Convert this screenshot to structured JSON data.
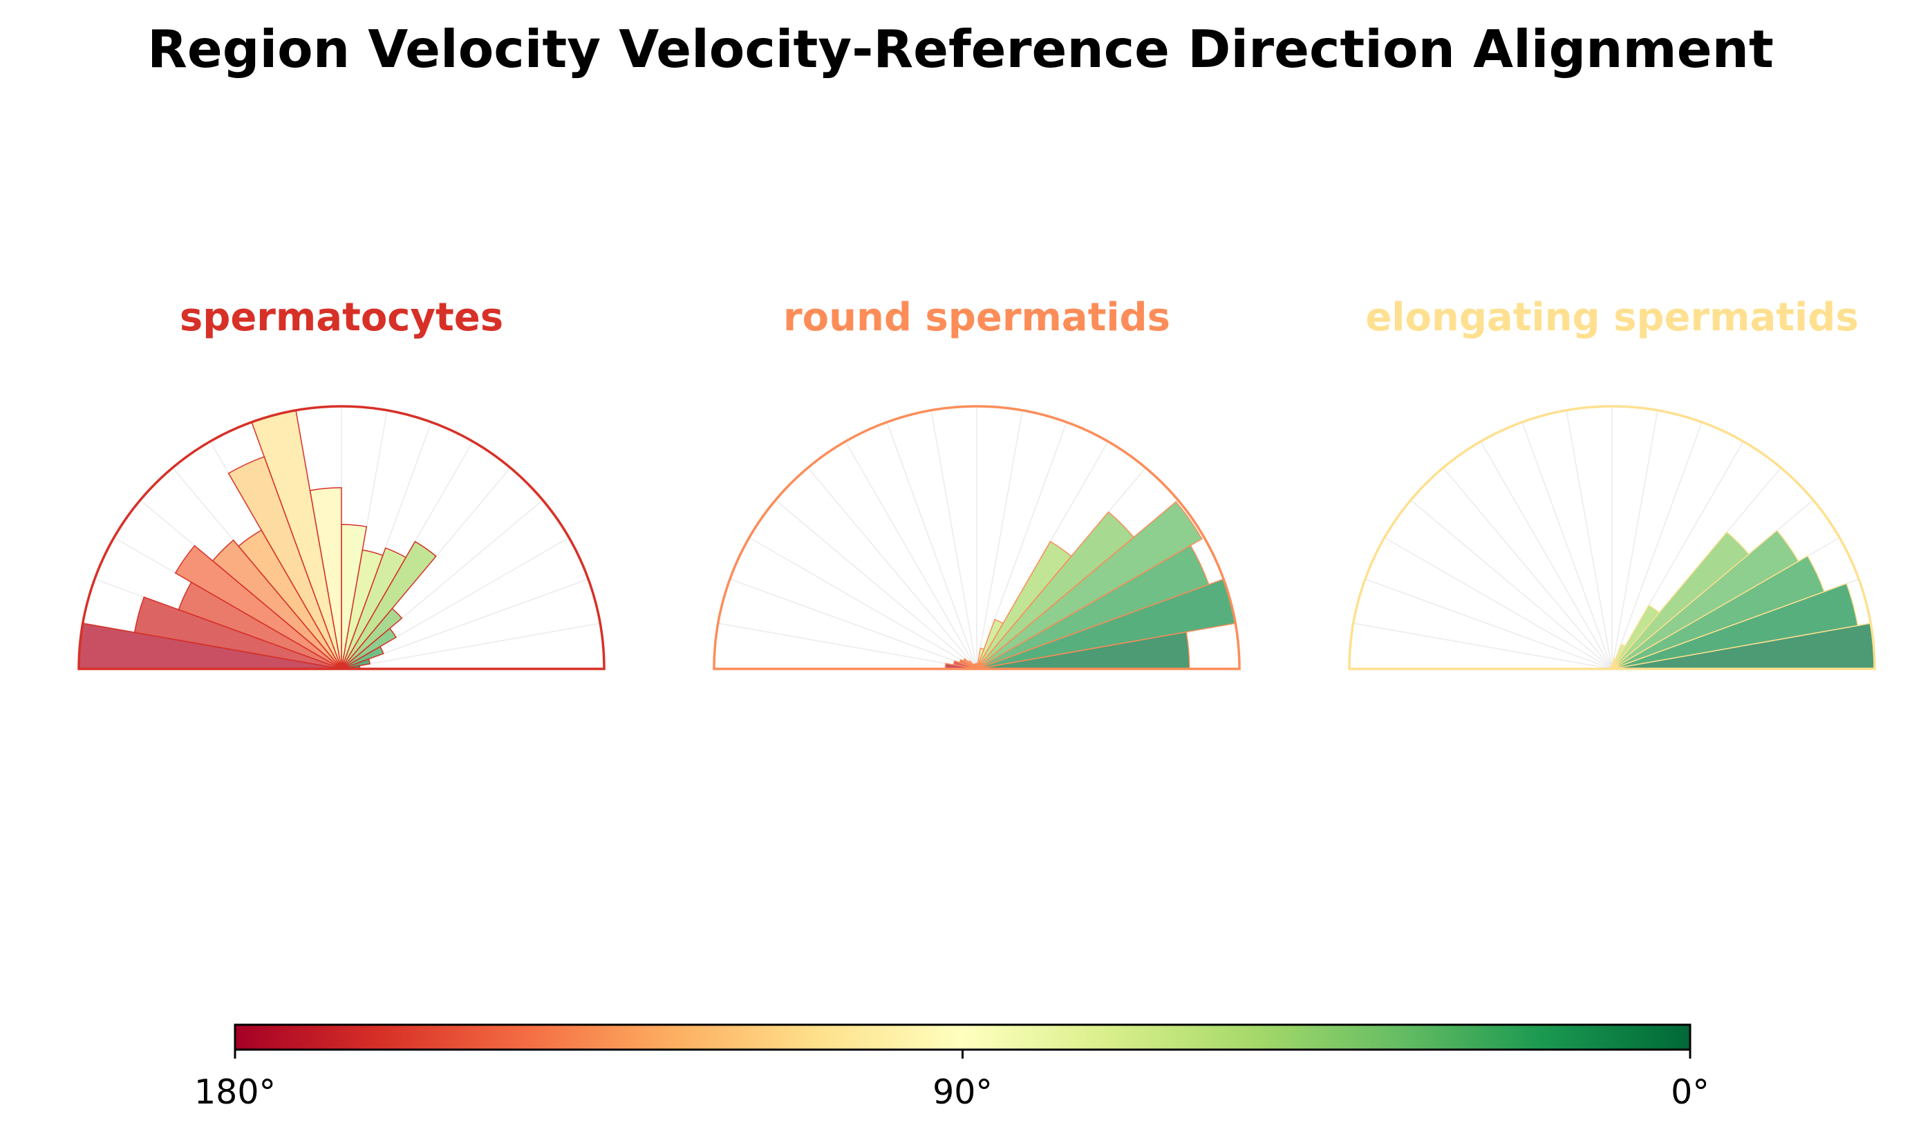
{
  "chart_data": {
    "type": "polar-histogram",
    "title": "Region Velocity Velocity-Reference Direction Alignment",
    "theta_range_deg": [
      0,
      180
    ],
    "bin_width_deg": 10,
    "bin_centers_deg": [
      5,
      15,
      25,
      35,
      45,
      55,
      65,
      75,
      85,
      95,
      105,
      115,
      125,
      135,
      145,
      155,
      165,
      175
    ],
    "panels": [
      {
        "name": "spermatocytes",
        "color": "#d73027",
        "values": [
          0.07,
          0.11,
          0.17,
          0.24,
          0.3,
          0.56,
          0.49,
          0.46,
          0.55,
          0.69,
          1.0,
          0.86,
          0.61,
          0.64,
          0.73,
          0.66,
          0.8,
          1.0
        ]
      },
      {
        "name": "round spermatids",
        "color": "#fc8d59",
        "values": [
          0.81,
          1.0,
          0.94,
          0.99,
          0.78,
          0.56,
          0.2,
          0.08,
          0.02,
          0.02,
          0.01,
          0.02,
          0.02,
          0.04,
          0.06,
          0.07,
          0.09,
          0.12
        ]
      },
      {
        "name": "elongating spermatids",
        "color": "#fee090",
        "values": [
          1.0,
          0.95,
          0.86,
          0.82,
          0.68,
          0.28,
          0.1,
          0.04,
          0.02,
          0.01,
          0.01,
          0.01,
          0.01,
          0.01,
          0.01,
          0.01,
          0.01,
          0.01
        ]
      }
    ],
    "colorbar": {
      "colormap": "RdYlGn",
      "tick_labels": [
        "180°",
        "90°",
        "0°"
      ],
      "tick_values": [
        180,
        90,
        0
      ]
    }
  }
}
